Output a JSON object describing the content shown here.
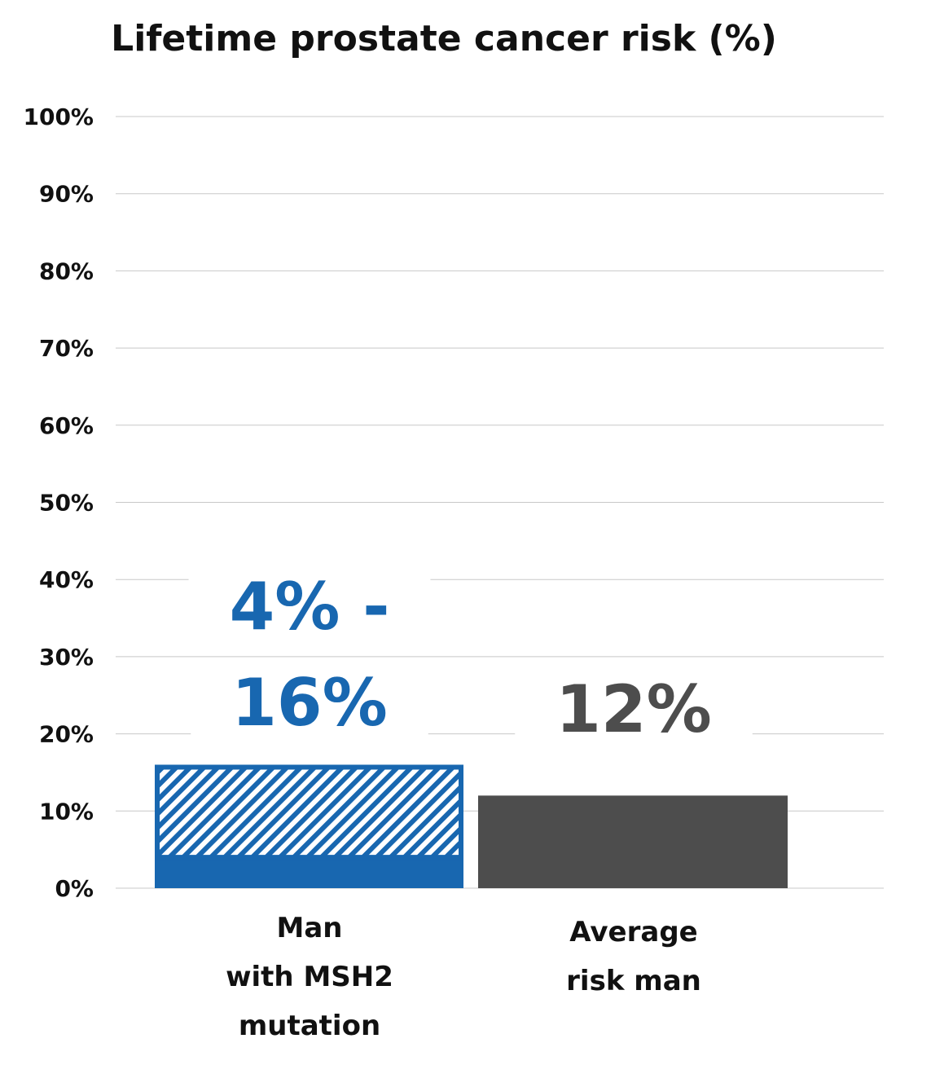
{
  "chart_data": {
    "type": "bar",
    "title": "Lifetime prostate cancer risk (%)",
    "xlabel": "",
    "ylabel": "",
    "ylim": [
      0,
      100
    ],
    "yticks": [
      0,
      10,
      20,
      30,
      40,
      50,
      60,
      70,
      80,
      90,
      100
    ],
    "ytick_labels": [
      "0%",
      "10%",
      "20%",
      "30%",
      "40%",
      "50%",
      "60%",
      "70%",
      "80%",
      "90%",
      "100%"
    ],
    "grid": true,
    "legend": "none",
    "categories": [
      [
        "Man",
        "with MSH2",
        "mutation"
      ],
      [
        "Average",
        "risk man"
      ]
    ],
    "bars": [
      {
        "kind": "range",
        "low": 4,
        "high": 16,
        "label_lines": [
          "4% -",
          "16%"
        ],
        "color": "#1867b0",
        "pattern": "hatched"
      },
      {
        "kind": "single",
        "value": 12,
        "label_lines": [
          "12%"
        ],
        "color": "#4d4d4d"
      }
    ],
    "gridline_color": "#c8c8c8"
  }
}
